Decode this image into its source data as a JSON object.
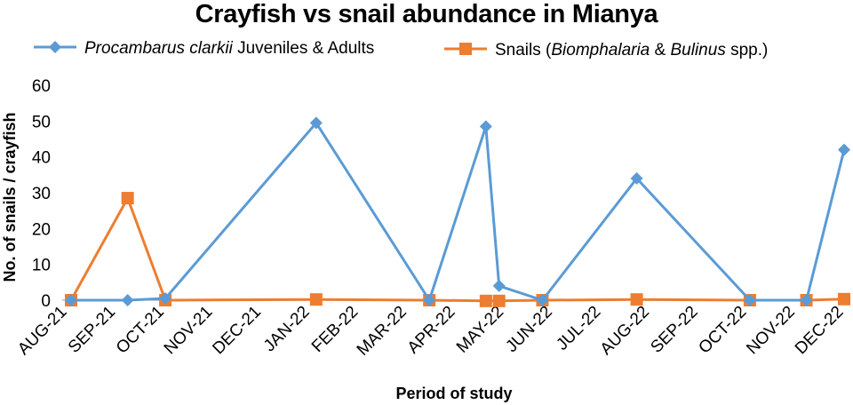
{
  "chart_data": {
    "type": "line",
    "title": "Crayfish vs snail abundance in Mianya",
    "xlabel": "Period of study",
    "ylabel": "No. of snails / crayfish",
    "ylim": [
      0,
      60
    ],
    "yticks": [
      0,
      10,
      20,
      30,
      40,
      50,
      60
    ],
    "categories": [
      "AUG-21",
      "SEP-21",
      "OCT-21",
      "NOV-21",
      "DEC-21",
      "JAN-22",
      "FEB-22",
      "MAR-22",
      "APR-22",
      "MAY-22",
      "JUN-22",
      "JUL-22",
      "AUG-22",
      "SEP-22",
      "OCT-22",
      "NOV-22",
      "DEC-22"
    ],
    "legend_position": "top",
    "series": [
      {
        "name": "Procambarus clarkii Juveniles & Adults",
        "legend_parts": [
          {
            "text": "Procambarus clarkii",
            "italic": true
          },
          {
            "text": " Juveniles & Adults",
            "italic": false
          }
        ],
        "color": "#5B9BD5",
        "marker": "diamond",
        "points": [
          {
            "x": 0,
            "y": 0
          },
          {
            "x": 1.5,
            "y": 0
          },
          {
            "x": 2.5,
            "y": 0.5
          },
          {
            "x": 6.5,
            "y": 49.5
          },
          {
            "x": 9.5,
            "y": 0
          },
          {
            "x": 11,
            "y": 48.5
          },
          {
            "x": 11.35,
            "y": 4
          },
          {
            "x": 12.5,
            "y": 0
          },
          {
            "x": 15,
            "y": 34
          },
          {
            "x": 18,
            "y": 0
          },
          {
            "x": 19.5,
            "y": 0
          },
          {
            "x": 20.5,
            "y": 42
          }
        ]
      },
      {
        "name": "Snails (Biomphalaria & Bulinus spp.)",
        "legend_parts": [
          {
            "text": "Snails (",
            "italic": false
          },
          {
            "text": "Biomphalaria",
            "italic": true
          },
          {
            "text": " & ",
            "italic": false
          },
          {
            "text": "Bulinus",
            "italic": true
          },
          {
            "text": " spp.)",
            "italic": false
          }
        ],
        "color": "#ED7D31",
        "marker": "square",
        "points": [
          {
            "x": 0,
            "y": 0
          },
          {
            "x": 1.5,
            "y": 28.5
          },
          {
            "x": 2.5,
            "y": 0
          },
          {
            "x": 6.5,
            "y": 0.2
          },
          {
            "x": 9.5,
            "y": 0
          },
          {
            "x": 11,
            "y": -0.2
          },
          {
            "x": 11.35,
            "y": -0.2
          },
          {
            "x": 12.5,
            "y": 0
          },
          {
            "x": 15,
            "y": 0.2
          },
          {
            "x": 18,
            "y": 0
          },
          {
            "x": 19.5,
            "y": 0
          },
          {
            "x": 20.5,
            "y": 0.3
          }
        ]
      }
    ],
    "x_range": [
      0,
      20.5
    ]
  }
}
